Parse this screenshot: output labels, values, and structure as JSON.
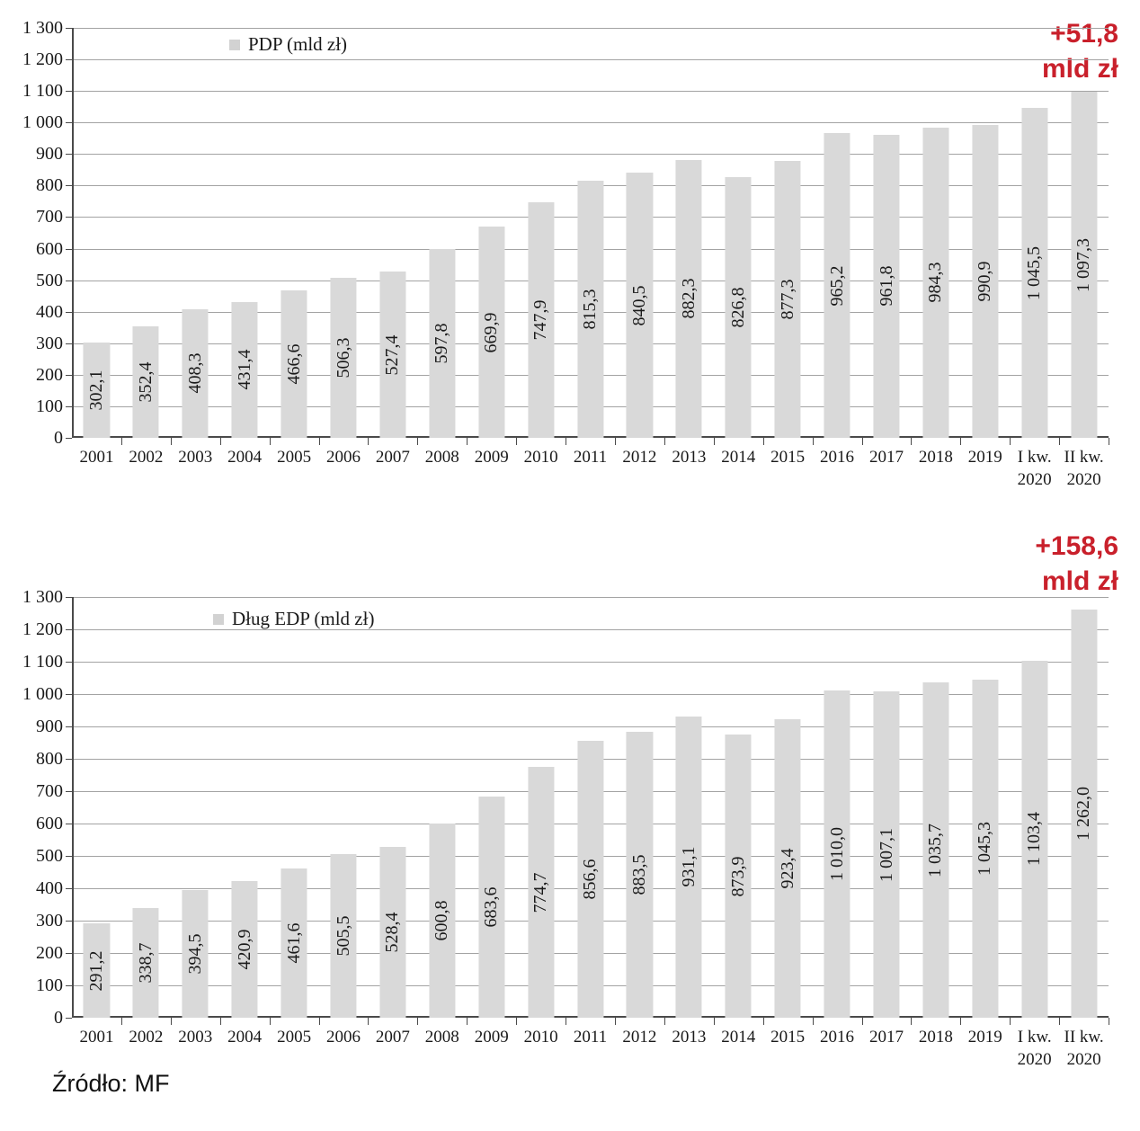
{
  "page": {
    "source_note": "Źródło: MF"
  },
  "colors": {
    "bar": "#d9d9d9",
    "grid": "#a3a3a3",
    "axis": "#4a4a4a",
    "accent_red": "#c9202b",
    "text": "#1a1a1a",
    "legend_swatch": "#d2d2d2"
  },
  "chart_data": [
    {
      "type": "bar",
      "legend": "PDP (mld zł)",
      "legend_position": "top-left-inside",
      "annotation": {
        "line1": "+51,8",
        "line2": "mld zł"
      },
      "categories": [
        "2001",
        "2002",
        "2003",
        "2004",
        "2005",
        "2006",
        "2007",
        "2008",
        "2009",
        "2010",
        "2011",
        "2012",
        "2013",
        "2014",
        "2015",
        "2016",
        "2017",
        "2018",
        "2019",
        "I kw.\n2020",
        "II kw.\n2020"
      ],
      "values": [
        302.1,
        352.4,
        408.3,
        431.4,
        466.6,
        506.3,
        527.4,
        597.8,
        669.9,
        747.9,
        815.3,
        840.5,
        882.3,
        826.8,
        877.3,
        965.2,
        961.8,
        984.3,
        990.9,
        1045.5,
        1097.3
      ],
      "value_labels": [
        "302,1",
        "352,4",
        "408,3",
        "431,4",
        "466,6",
        "506,3",
        "527,4",
        "597,8",
        "669,9",
        "747,9",
        "815,3",
        "840,5",
        "882,3",
        "826,8",
        "877,3",
        "965,2",
        "961,8",
        "984,3",
        "990,9",
        "1 045,5",
        "1 097,3"
      ],
      "ylim": [
        0,
        1300
      ],
      "ytick_step": 100,
      "ytick_labels_top_down": [
        "1 300",
        "1 200",
        "1 100",
        "1 000",
        "900",
        "800",
        "700",
        "600",
        "500",
        "400",
        "300",
        "200",
        "100",
        "0"
      ],
      "grid": true,
      "bar_color": "#d9d9d9"
    },
    {
      "type": "bar",
      "legend": "Dług EDP (mld zł)",
      "legend_position": "top-left-inside",
      "annotation": {
        "line1": "+158,6",
        "line2": "mld zł"
      },
      "categories": [
        "2001",
        "2002",
        "2003",
        "2004",
        "2005",
        "2006",
        "2007",
        "2008",
        "2009",
        "2010",
        "2011",
        "2012",
        "2013",
        "2014",
        "2015",
        "2016",
        "2017",
        "2018",
        "2019",
        "I kw.\n2020",
        "II kw.\n2020"
      ],
      "values": [
        291.2,
        338.7,
        394.5,
        420.9,
        461.6,
        505.5,
        528.4,
        600.8,
        683.6,
        774.7,
        856.6,
        883.5,
        931.1,
        873.9,
        923.4,
        1010.0,
        1007.1,
        1035.7,
        1045.3,
        1103.4,
        1262.0
      ],
      "value_labels": [
        "291,2",
        "338,7",
        "394,5",
        "420,9",
        "461,6",
        "505,5",
        "528,4",
        "600,8",
        "683,6",
        "774,7",
        "856,6",
        "883,5",
        "931,1",
        "873,9",
        "923,4",
        "1 010,0",
        "1 007,1",
        "1 035,7",
        "1 045,3",
        "1 103,4",
        "1 262,0"
      ],
      "ylim": [
        0,
        1300
      ],
      "ytick_step": 100,
      "ytick_labels_top_down": [
        "1 300",
        "1 200",
        "1 100",
        "1 000",
        "900",
        "800",
        "700",
        "600",
        "500",
        "400",
        "300",
        "200",
        "100",
        "0"
      ],
      "grid": true,
      "bar_color": "#d9d9d9"
    }
  ]
}
